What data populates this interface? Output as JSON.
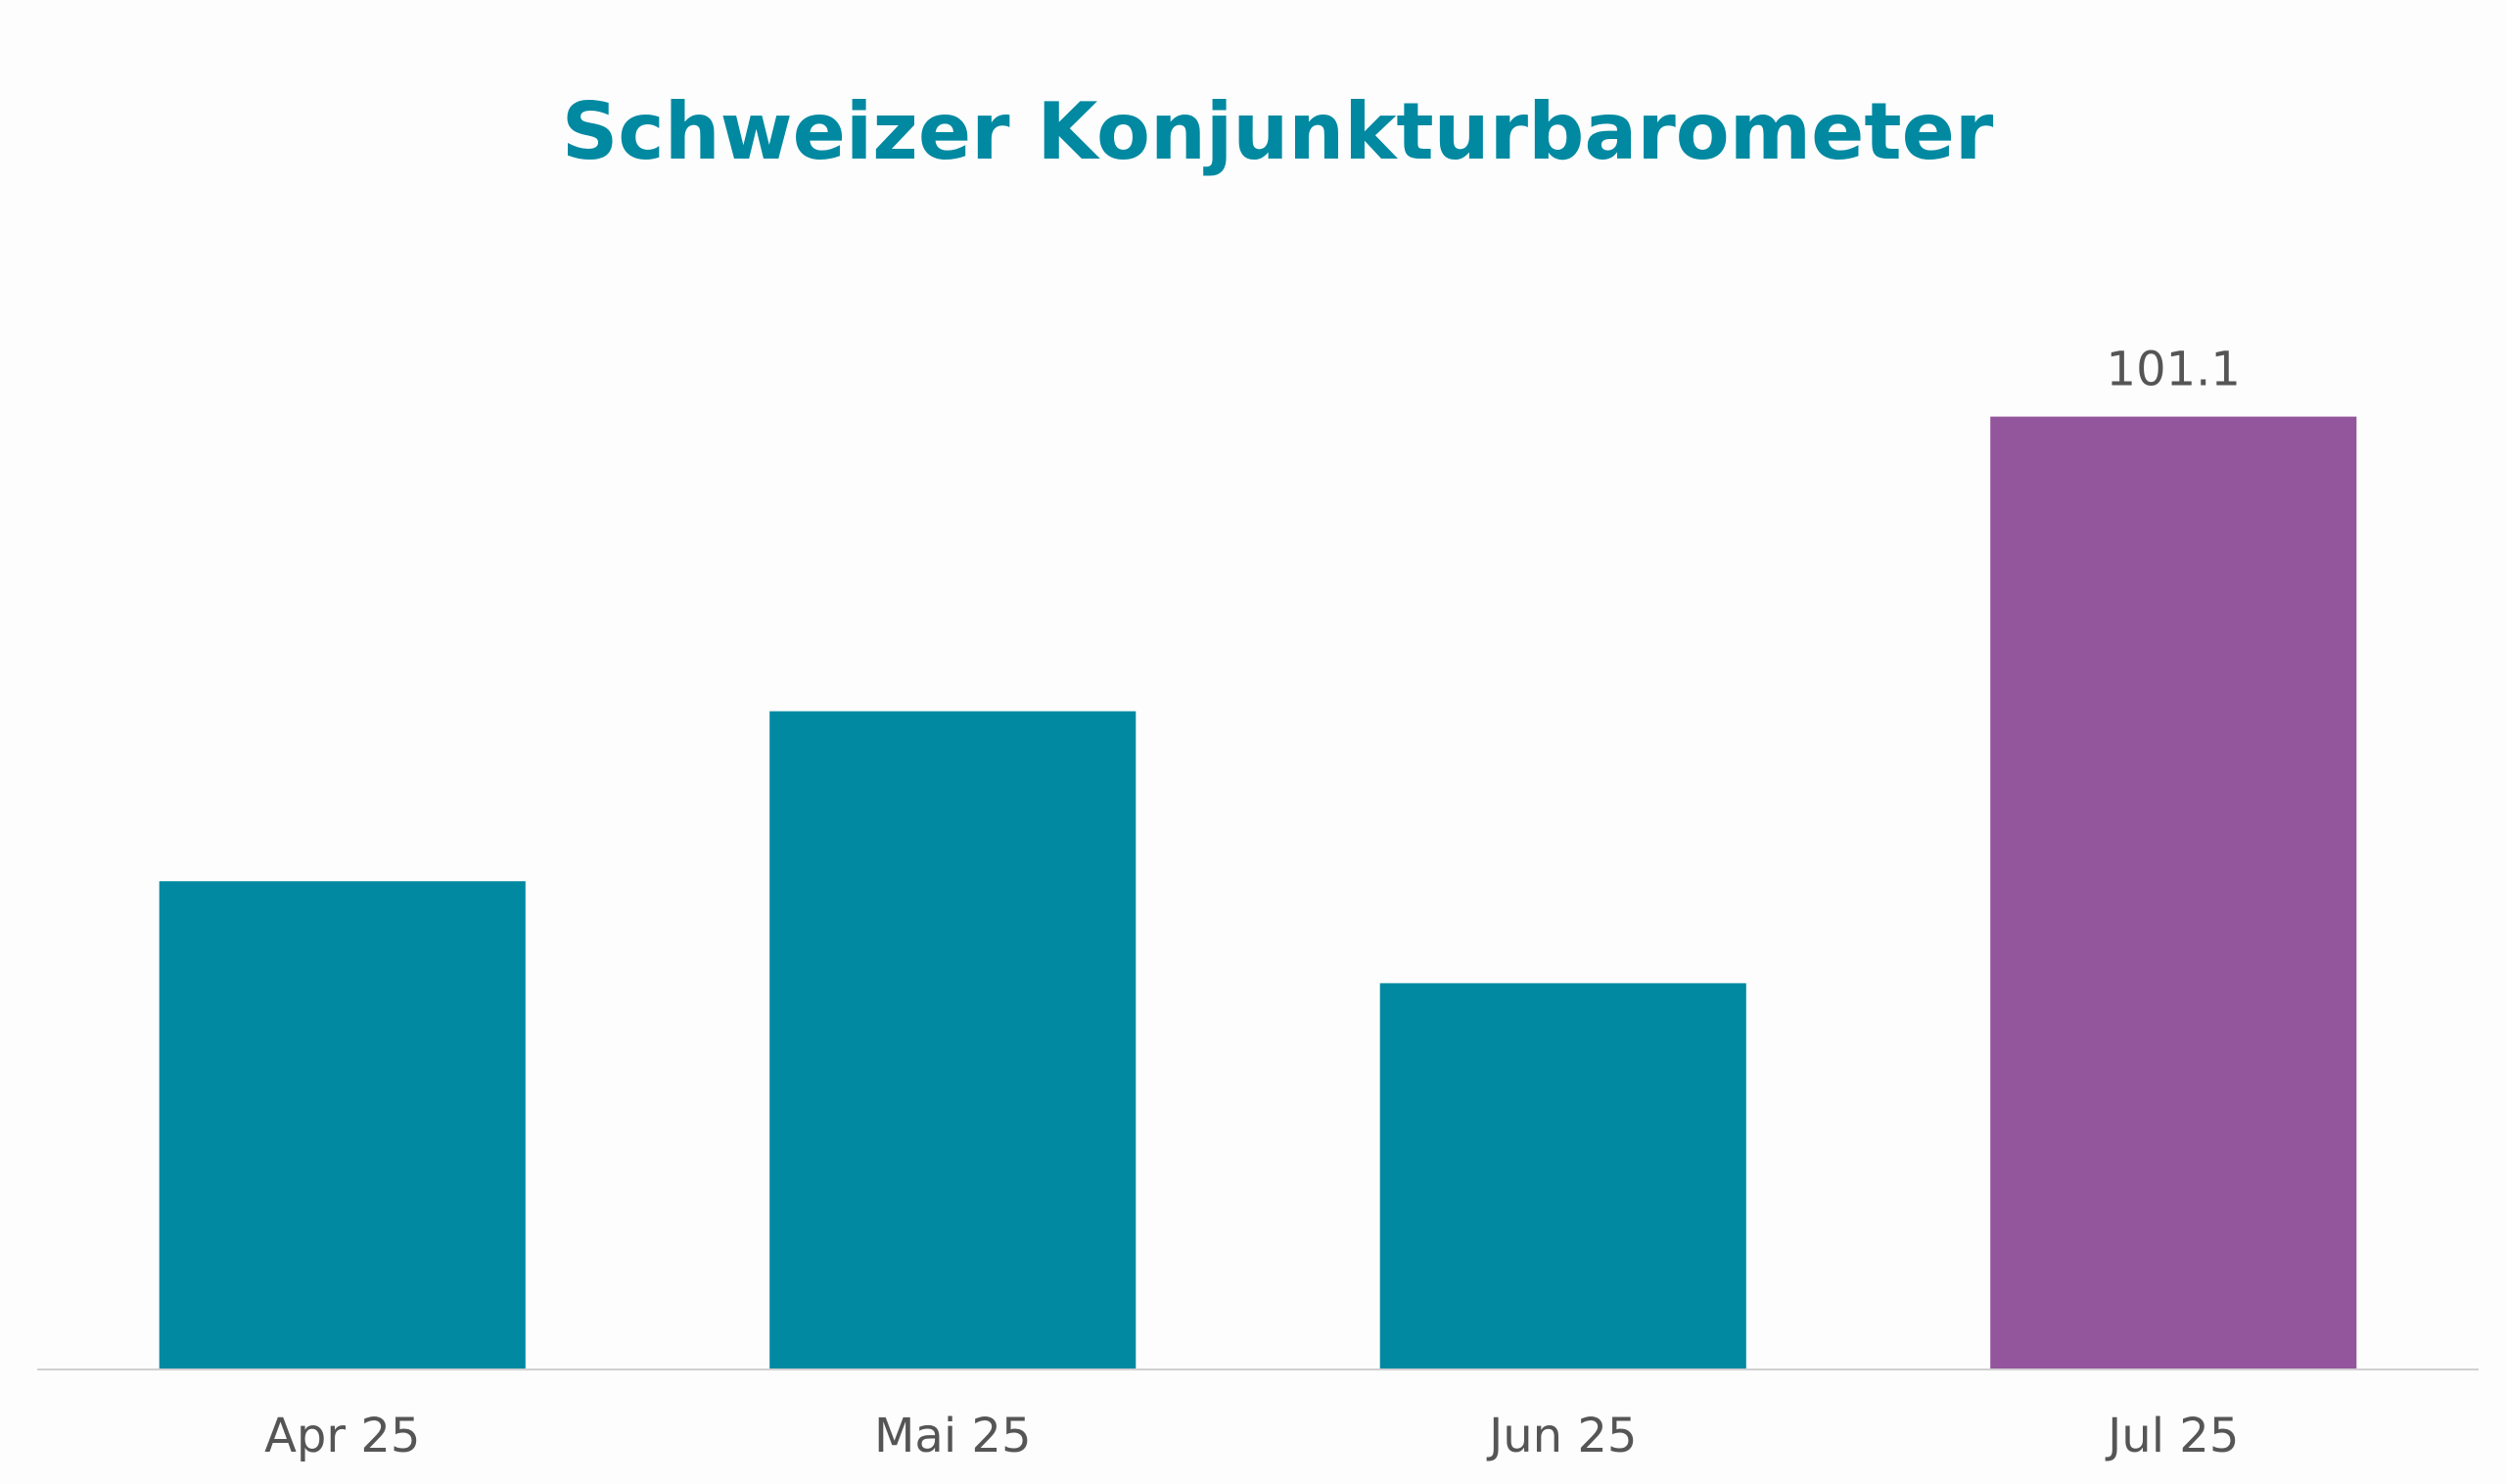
{
  "chart_data": {
    "type": "bar",
    "title": "Schweizer Konjunkturbarometer",
    "categories": [
      "Apr 25",
      "Mai 25",
      "Jun 25",
      "Jul 25"
    ],
    "values": [
      97.0,
      98.5,
      96.1,
      101.1
    ],
    "value_labels": [
      null,
      null,
      null,
      "101.1"
    ],
    "colors": [
      "#0089a1",
      "#0089a1",
      "#0089a1",
      "#93559b"
    ],
    "ylim": [
      92.7,
      101.9
    ],
    "grid": false
  }
}
